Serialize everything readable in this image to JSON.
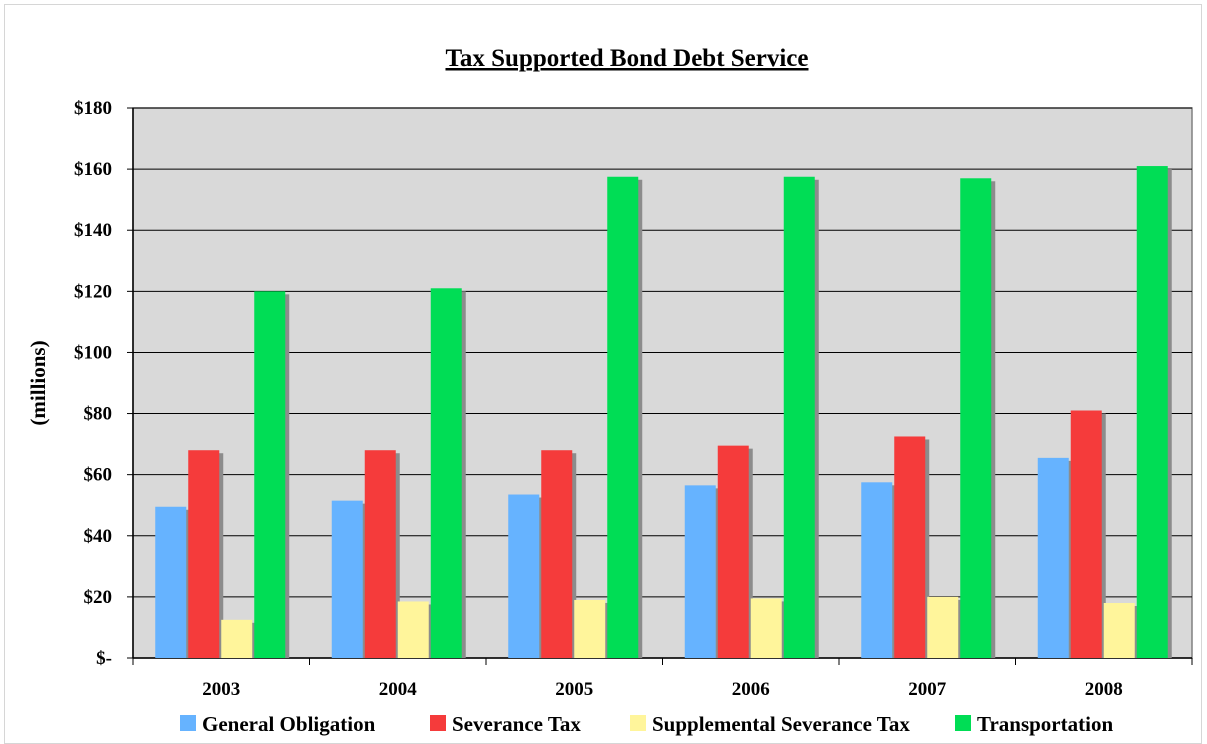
{
  "chart_data": {
    "type": "bar",
    "title": "Tax Supported Bond Debt Service",
    "ylabel": "(millions)",
    "xlabel": "",
    "categories": [
      "2003",
      "2004",
      "2005",
      "2006",
      "2007",
      "2008"
    ],
    "ylim": [
      0,
      180
    ],
    "yticks": [
      0,
      20,
      40,
      60,
      80,
      100,
      120,
      140,
      160,
      180
    ],
    "ytick_labels": [
      "$-",
      "$20",
      "$40",
      "$60",
      "$80",
      "$100",
      "$120",
      "$140",
      "$160",
      "$180"
    ],
    "grid": true,
    "legend_position": "bottom",
    "plot_background": "#d9d9d9",
    "series": [
      {
        "name": "General Obligation",
        "color": "#66b3ff",
        "values": [
          49.5,
          51.5,
          53.5,
          56.5,
          57.5,
          65.5
        ]
      },
      {
        "name": "Severance Tax",
        "color": "#f53b3b",
        "values": [
          68,
          68,
          68,
          69.5,
          72.5,
          81
        ]
      },
      {
        "name": "Supplemental Severance Tax",
        "color": "#fff59b",
        "values": [
          12.5,
          18.5,
          19,
          19.5,
          20,
          18
        ]
      },
      {
        "name": "Transportation",
        "color": "#00dd55",
        "values": [
          120,
          121,
          157.5,
          157.5,
          157,
          161
        ]
      }
    ]
  }
}
